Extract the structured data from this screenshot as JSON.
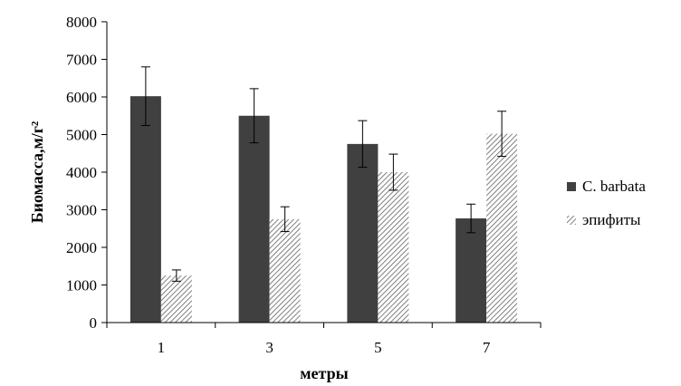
{
  "chart_data": {
    "type": "bar",
    "categories": [
      "1",
      "3",
      "5",
      "7"
    ],
    "series": [
      {
        "name": "C. barbata",
        "values": [
          6020,
          5500,
          4750,
          2770
        ],
        "error": [
          780,
          720,
          620,
          380
        ],
        "color": "#404040",
        "pattern": "solid"
      },
      {
        "name": "эпифиты",
        "values": [
          1250,
          2750,
          4000,
          5020
        ],
        "error": [
          150,
          330,
          480,
          600
        ],
        "color": "#7f7f7f",
        "pattern": "diagonal-hatch"
      }
    ],
    "xlabel": "метры",
    "ylabel": "Биомасса,м/г²",
    "ylim": [
      0,
      8000
    ],
    "yticks": [
      0,
      1000,
      2000,
      3000,
      4000,
      5000,
      6000,
      7000,
      8000
    ],
    "grid": false,
    "legend_position": "right"
  }
}
